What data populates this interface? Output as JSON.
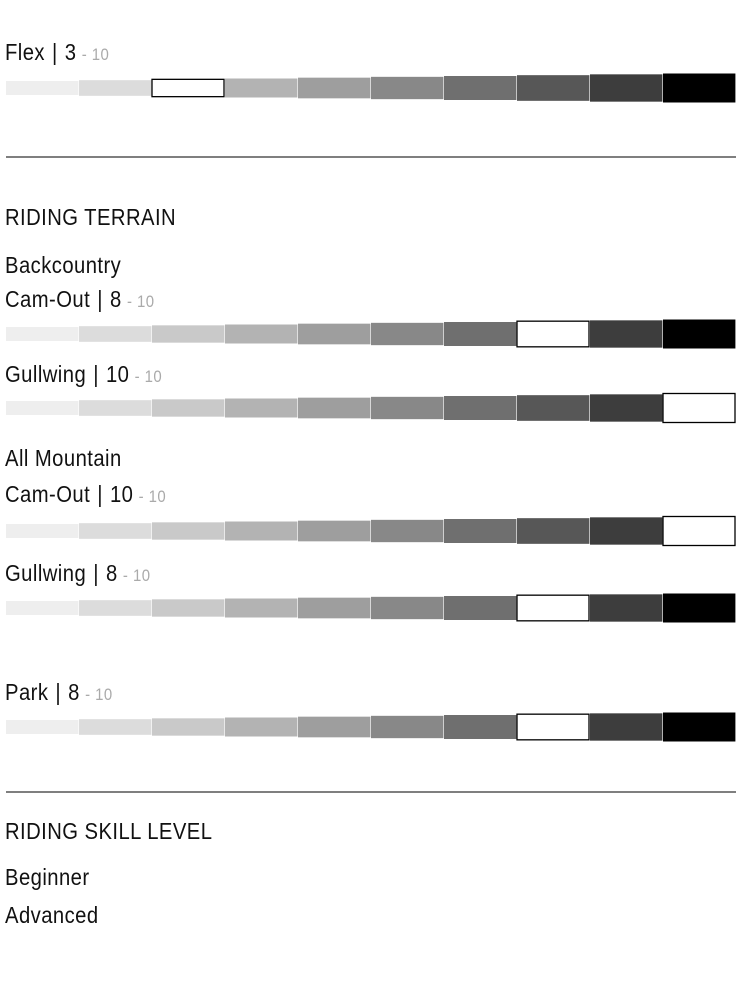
{
  "scale": {
    "value": 10,
    "label": "- 10"
  },
  "separator": "|",
  "segment_colors": [
    "#eeeeee",
    "#dcdcdc",
    "#c9c9c9",
    "#b3b3b3",
    "#9e9e9e",
    "#888888",
    "#6f6f6f",
    "#575757",
    "#3d3d3d",
    "#000000"
  ],
  "flex": {
    "label": "Flex",
    "value": 3
  },
  "terrain": {
    "title": "RIDING TERRAIN",
    "rows": [
      {
        "heading": "Backcountry",
        "label": "Cam-Out",
        "value": 8
      },
      {
        "label": "Gullwing",
        "value": 10
      },
      {
        "heading": "All Mountain",
        "label": "Cam-Out",
        "value": 10
      },
      {
        "label": "Gullwing",
        "value": 8
      },
      {
        "label": "Park",
        "value": 8
      }
    ]
  },
  "skill": {
    "title": "RIDING SKILL LEVEL",
    "levels": [
      "Beginner",
      "Advanced"
    ]
  }
}
